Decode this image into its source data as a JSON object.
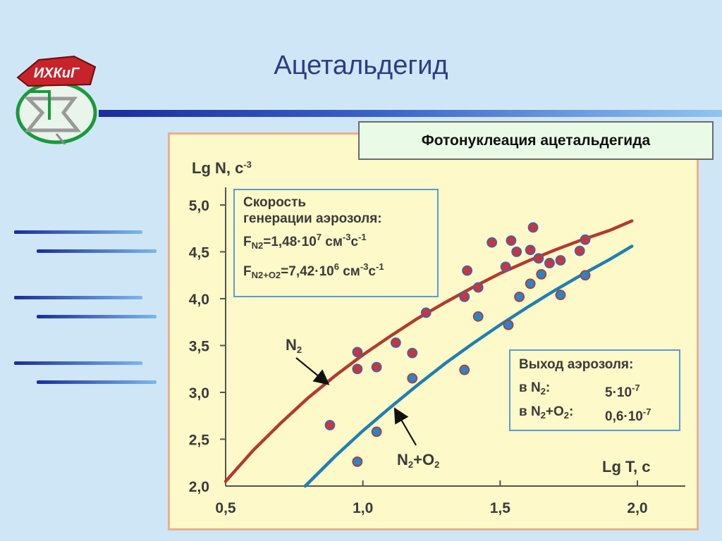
{
  "slide": {
    "title": "Ацетальдегид",
    "logo_text": "ИХКиГ"
  },
  "chart_data": {
    "type": "scatter",
    "title": "Фотонуклеация ацетальдегида",
    "xlabel": "Lg T, с",
    "ylabel_base": "Lg N, с",
    "ylabel_sup": "-3",
    "xlim": [
      0.5,
      2.0
    ],
    "ylim": [
      2.0,
      5.0
    ],
    "x_ticks": [
      "0,5",
      "1,0",
      "1,5",
      "2,0"
    ],
    "x_tick_values": [
      0.5,
      1.0,
      1.5,
      2.0
    ],
    "y_ticks": [
      "2,0",
      "2,5",
      "3,0",
      "3,5",
      "4,0",
      "4,5",
      "5,0"
    ],
    "y_tick_values": [
      2.0,
      2.5,
      3.0,
      3.5,
      4.0,
      4.5,
      5.0
    ],
    "series": [
      {
        "name": "N2",
        "label_base": "N",
        "label_sub": "2",
        "color": "#b23a32",
        "marker_fill": "#c9363a",
        "marker_edge": "#3e62b5",
        "curve": [
          [
            0.5,
            2.05
          ],
          [
            0.6,
            2.38
          ],
          [
            0.7,
            2.67
          ],
          [
            0.8,
            2.94
          ],
          [
            0.9,
            3.18
          ],
          [
            1.0,
            3.4
          ],
          [
            1.1,
            3.6
          ],
          [
            1.2,
            3.79
          ],
          [
            1.3,
            3.96
          ],
          [
            1.4,
            4.12
          ],
          [
            1.5,
            4.27
          ],
          [
            1.6,
            4.4
          ],
          [
            1.7,
            4.52
          ],
          [
            1.8,
            4.63
          ],
          [
            1.9,
            4.73
          ],
          [
            1.98,
            4.83
          ]
        ],
        "points": [
          [
            0.88,
            2.65
          ],
          [
            0.98,
            3.43
          ],
          [
            0.98,
            3.25
          ],
          [
            1.05,
            3.27
          ],
          [
            1.12,
            3.53
          ],
          [
            1.18,
            3.42
          ],
          [
            1.23,
            3.85
          ],
          [
            1.37,
            4.02
          ],
          [
            1.38,
            4.3
          ],
          [
            1.42,
            4.12
          ],
          [
            1.47,
            4.6
          ],
          [
            1.52,
            4.34
          ],
          [
            1.54,
            4.62
          ],
          [
            1.56,
            4.5
          ],
          [
            1.61,
            4.52
          ],
          [
            1.62,
            4.76
          ],
          [
            1.64,
            4.43
          ],
          [
            1.68,
            4.38
          ],
          [
            1.72,
            4.41
          ],
          [
            1.79,
            4.51
          ],
          [
            1.81,
            4.63
          ]
        ]
      },
      {
        "name": "N2+O2",
        "label_base": "N",
        "label_sub": "2",
        "label_plus": "+O",
        "label_sub2": "2",
        "color": "#1f7fb3",
        "marker_fill": "#2a84c8",
        "marker_edge": "#b23a32",
        "curve": [
          [
            0.79,
            2.0
          ],
          [
            0.9,
            2.32
          ],
          [
            1.0,
            2.59
          ],
          [
            1.1,
            2.84
          ],
          [
            1.2,
            3.08
          ],
          [
            1.3,
            3.31
          ],
          [
            1.4,
            3.52
          ],
          [
            1.5,
            3.72
          ],
          [
            1.6,
            3.91
          ],
          [
            1.7,
            4.09
          ],
          [
            1.8,
            4.26
          ],
          [
            1.9,
            4.42
          ],
          [
            1.98,
            4.56
          ]
        ],
        "points": [
          [
            0.98,
            2.26
          ],
          [
            1.05,
            2.58
          ],
          [
            1.18,
            3.15
          ],
          [
            1.37,
            3.24
          ],
          [
            1.42,
            3.81
          ],
          [
            1.53,
            3.72
          ],
          [
            1.57,
            4.02
          ],
          [
            1.61,
            4.16
          ],
          [
            1.65,
            4.26
          ],
          [
            1.72,
            4.04
          ],
          [
            1.81,
            4.25
          ]
        ]
      }
    ],
    "rate_box": {
      "heading_line1": "Скорость",
      "heading_line2": "генерации аэрозоля:",
      "f1_base": "F",
      "f1_sub": "N2",
      "f1_value": "=1,48·10",
      "f1_exp": "7",
      "f1_unit": " см",
      "f1_unit_exp1": "-3",
      "f1_unit2": "с",
      "f1_unit_exp2": "-1",
      "f2_base": "F",
      "f2_sub": "N2+O2",
      "f2_value": "=7,42·10",
      "f2_exp": "6",
      "f2_unit": " см",
      "f2_unit_exp1": "-3",
      "f2_unit2": "с",
      "f2_unit_exp2": "-1"
    },
    "yield_box": {
      "heading": "Выход аэрозоля:",
      "row1_label_base": "в N",
      "row1_label_sub": "2",
      "row1_label_end": ":",
      "row1_value": "5·10",
      "row1_exp": "-7",
      "row2_label_base": "в N",
      "row2_label_sub": "2",
      "row2_label_mid": "+O",
      "row2_label_sub2": "2",
      "row2_label_end": ":",
      "row2_value": "0,6·10",
      "row2_exp": "-7"
    }
  }
}
